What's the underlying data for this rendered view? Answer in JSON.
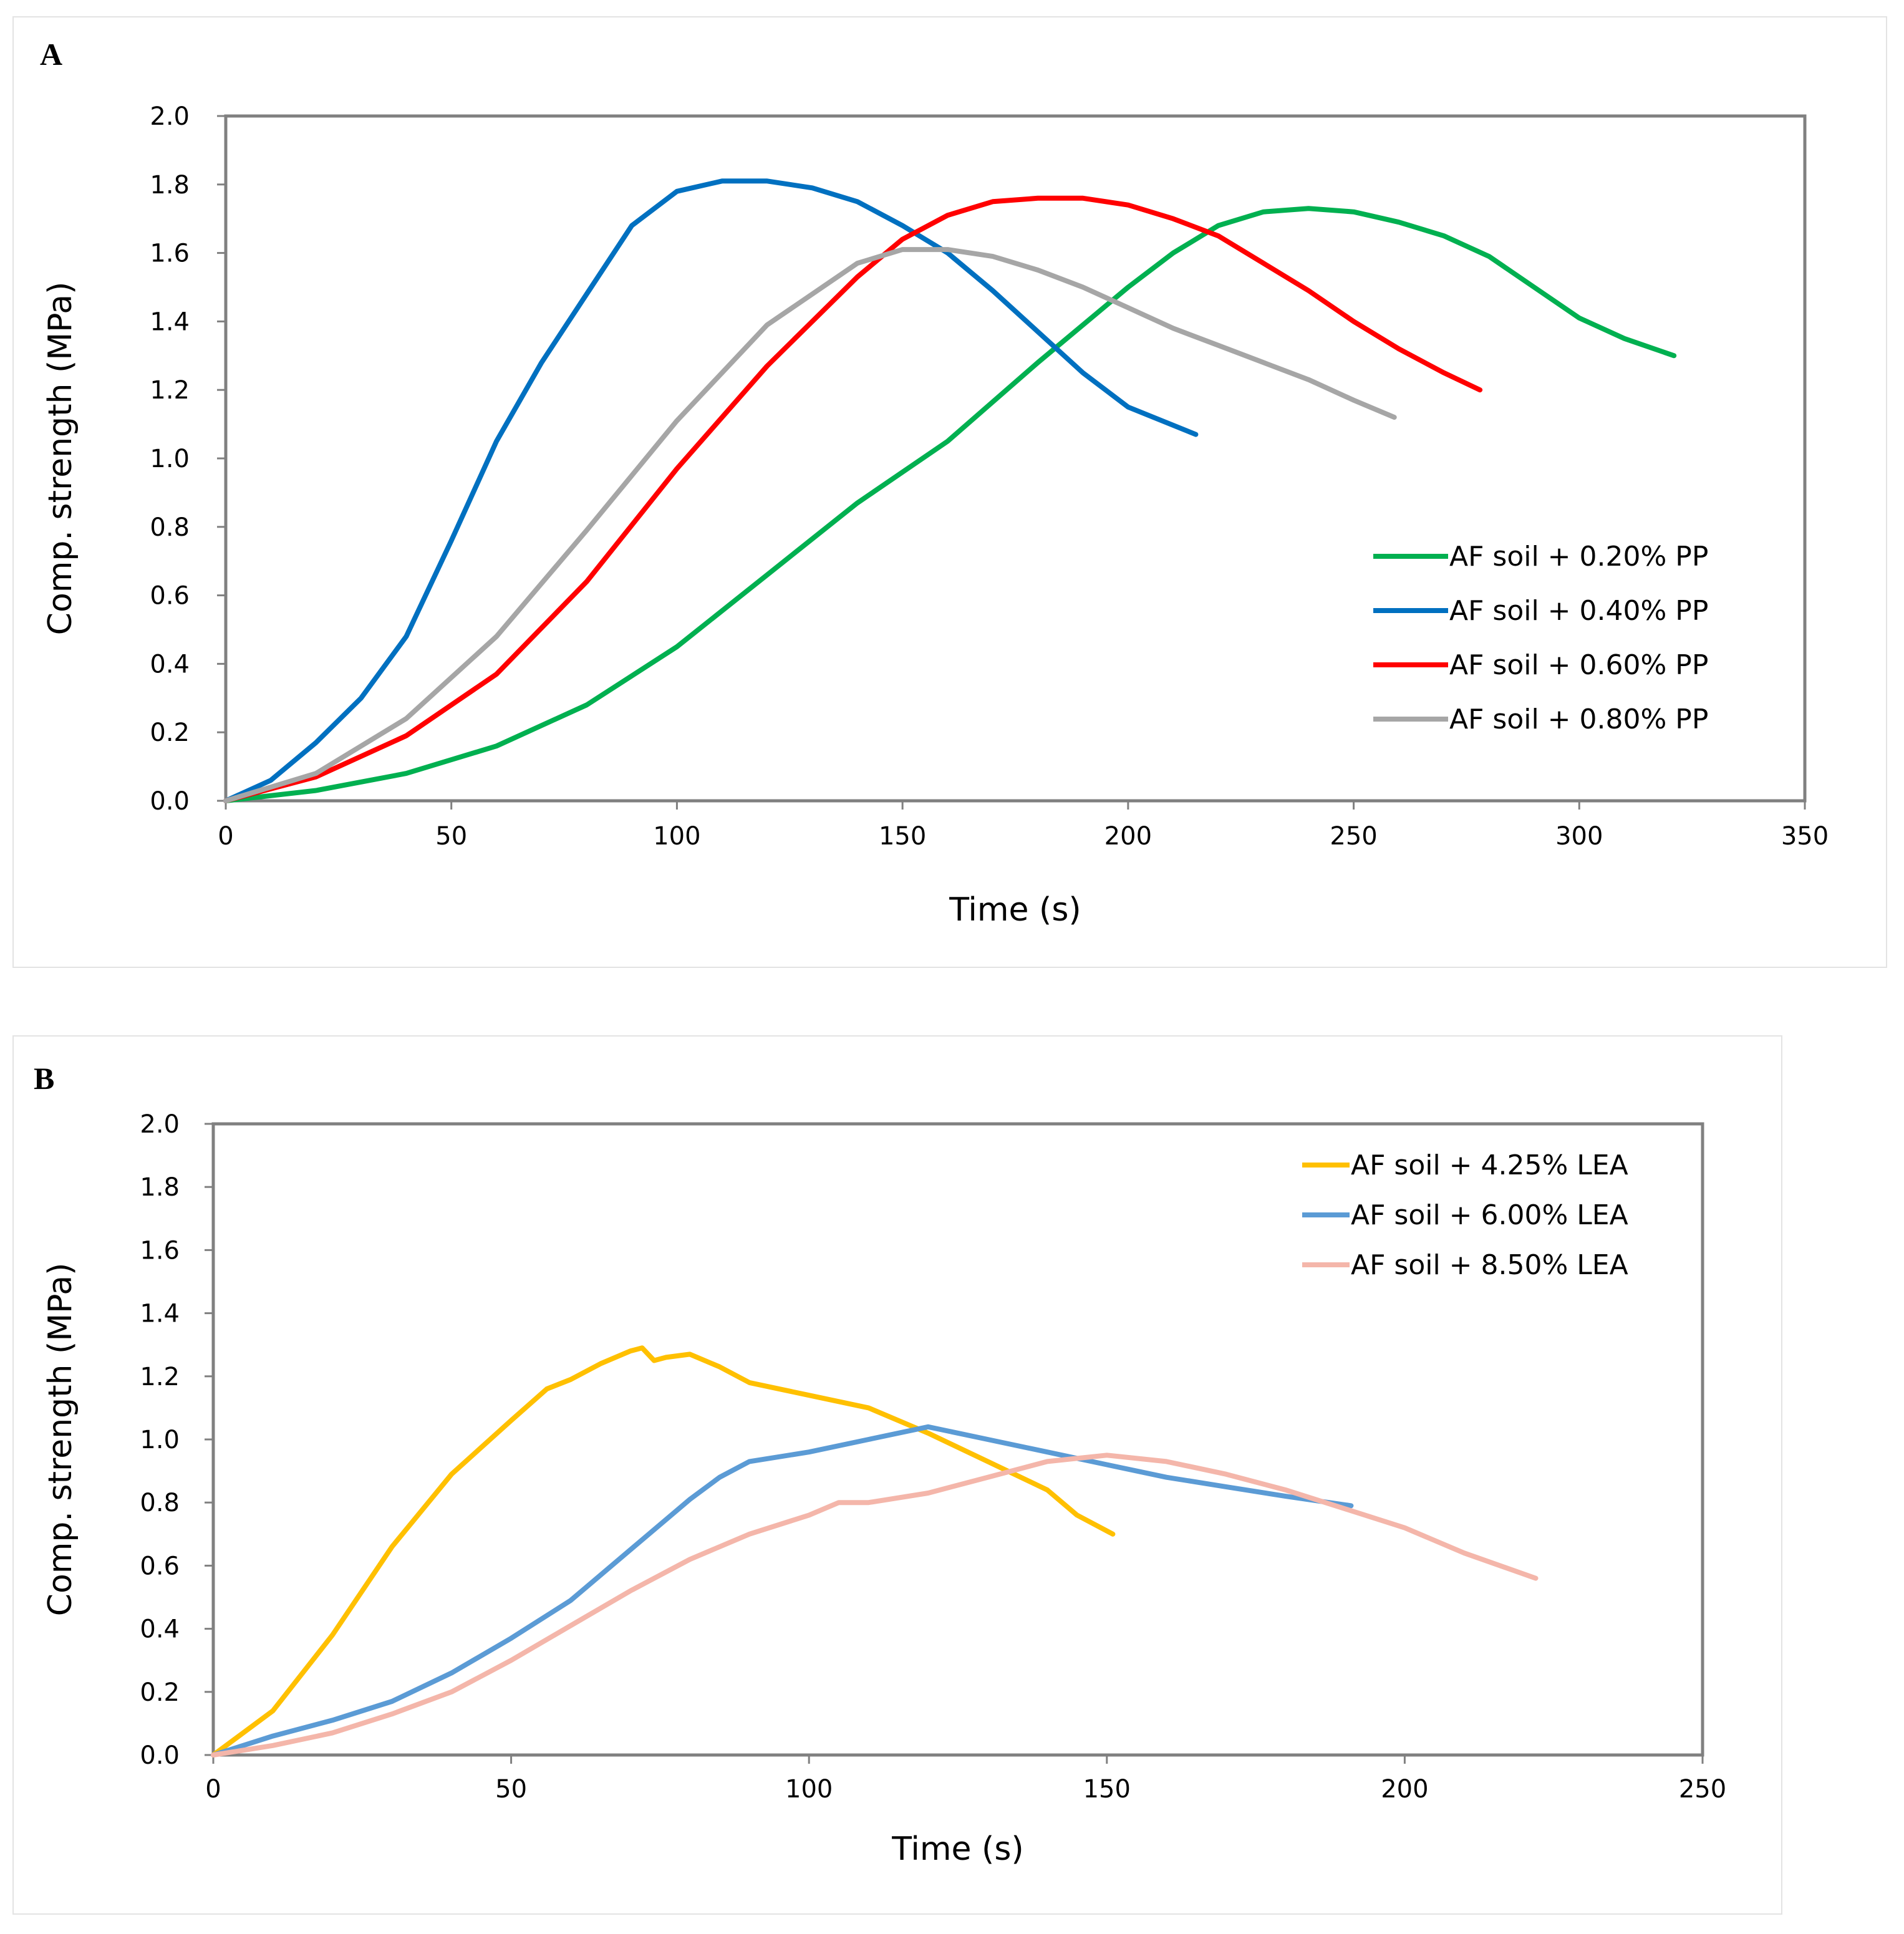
{
  "chart_data": [
    {
      "panel": "A",
      "type": "line",
      "xlabel": "Time (s)",
      "ylabel": "Comp. strength (MPa)",
      "xlim": [
        0,
        350
      ],
      "ylim": [
        0,
        2.0
      ],
      "xticks": [
        "0",
        "50",
        "100",
        "150",
        "200",
        "250",
        "300",
        "350"
      ],
      "yticks": [
        "0.0",
        "0.2",
        "0.4",
        "0.6",
        "0.8",
        "1.0",
        "1.2",
        "1.4",
        "1.6",
        "1.8",
        "2.0"
      ],
      "legend_position": "right",
      "series": [
        {
          "name": "AF soil + 0.20% PP",
          "color": "#00b050",
          "x": [
            0,
            20,
            40,
            60,
            80,
            100,
            120,
            140,
            160,
            180,
            200,
            210,
            220,
            230,
            240,
            250,
            260,
            270,
            280,
            290,
            300,
            310,
            321
          ],
          "y": [
            0,
            0.03,
            0.08,
            0.16,
            0.28,
            0.45,
            0.66,
            0.87,
            1.05,
            1.28,
            1.5,
            1.6,
            1.68,
            1.72,
            1.73,
            1.72,
            1.69,
            1.65,
            1.59,
            1.5,
            1.41,
            1.35,
            1.3
          ]
        },
        {
          "name": "AF soil + 0.40% PP",
          "color": "#0070c0",
          "x": [
            0,
            10,
            20,
            30,
            40,
            50,
            60,
            70,
            80,
            90,
            100,
            110,
            120,
            130,
            140,
            150,
            160,
            170,
            180,
            190,
            200,
            215
          ],
          "y": [
            0,
            0.06,
            0.17,
            0.3,
            0.48,
            0.76,
            1.05,
            1.28,
            1.48,
            1.68,
            1.78,
            1.81,
            1.81,
            1.79,
            1.75,
            1.68,
            1.6,
            1.49,
            1.37,
            1.25,
            1.15,
            1.07
          ]
        },
        {
          "name": "AF soil + 0.60% PP",
          "color": "#ff0000",
          "x": [
            0,
            20,
            40,
            60,
            80,
            100,
            120,
            140,
            150,
            160,
            170,
            180,
            190,
            200,
            210,
            220,
            230,
            240,
            250,
            260,
            270,
            278
          ],
          "y": [
            0,
            0.07,
            0.19,
            0.37,
            0.64,
            0.97,
            1.27,
            1.53,
            1.64,
            1.71,
            1.75,
            1.76,
            1.76,
            1.74,
            1.7,
            1.65,
            1.57,
            1.49,
            1.4,
            1.32,
            1.25,
            1.2
          ]
        },
        {
          "name": "AF soil + 0.80% PP",
          "color": "#a6a6a6",
          "x": [
            0,
            20,
            40,
            60,
            80,
            100,
            120,
            140,
            150,
            160,
            170,
            180,
            190,
            200,
            210,
            220,
            230,
            240,
            250,
            259
          ],
          "y": [
            0,
            0.08,
            0.24,
            0.48,
            0.79,
            1.11,
            1.39,
            1.57,
            1.61,
            1.61,
            1.59,
            1.55,
            1.5,
            1.44,
            1.38,
            1.33,
            1.28,
            1.23,
            1.17,
            1.12
          ]
        }
      ]
    },
    {
      "panel": "B",
      "type": "line",
      "xlabel": "Time (s)",
      "ylabel": "Comp. strength (MPa)",
      "xlim": [
        0,
        250
      ],
      "ylim": [
        0,
        2.0
      ],
      "xticks": [
        "0",
        "50",
        "100",
        "150",
        "200",
        "250"
      ],
      "yticks": [
        "0.0",
        "0.2",
        "0.4",
        "0.6",
        "0.8",
        "1.0",
        "1.2",
        "1.4",
        "1.6",
        "1.8",
        "2.0"
      ],
      "legend_position": "top-right",
      "series": [
        {
          "name": "AF soil + 4.25% LEA",
          "color": "#ffc000",
          "x": [
            0,
            10,
            20,
            30,
            40,
            50,
            56,
            60,
            65,
            70,
            72,
            74,
            76,
            80,
            85,
            90,
            100,
            110,
            120,
            130,
            140,
            145,
            151
          ],
          "y": [
            0,
            0.14,
            0.38,
            0.66,
            0.89,
            1.06,
            1.16,
            1.19,
            1.24,
            1.28,
            1.29,
            1.25,
            1.26,
            1.27,
            1.23,
            1.18,
            1.14,
            1.1,
            1.02,
            0.93,
            0.84,
            0.76,
            0.7
          ]
        },
        {
          "name": "AF soil + 6.00% LEA",
          "color": "#5b9bd5",
          "x": [
            0,
            10,
            20,
            30,
            40,
            50,
            60,
            70,
            80,
            85,
            90,
            100,
            110,
            120,
            130,
            140,
            150,
            160,
            170,
            180,
            191
          ],
          "y": [
            0,
            0.06,
            0.11,
            0.17,
            0.26,
            0.37,
            0.49,
            0.65,
            0.81,
            0.88,
            0.93,
            0.96,
            1.0,
            1.04,
            1.0,
            0.96,
            0.92,
            0.88,
            0.85,
            0.82,
            0.79
          ]
        },
        {
          "name": "AF soil + 8.50% LEA",
          "color": "#f4b6aa",
          "x": [
            0,
            10,
            20,
            30,
            40,
            50,
            60,
            70,
            80,
            90,
            100,
            105,
            110,
            120,
            130,
            140,
            150,
            160,
            170,
            180,
            190,
            200,
            210,
            222
          ],
          "y": [
            0,
            0.03,
            0.07,
            0.13,
            0.2,
            0.3,
            0.41,
            0.52,
            0.62,
            0.7,
            0.76,
            0.8,
            0.8,
            0.83,
            0.88,
            0.93,
            0.95,
            0.93,
            0.89,
            0.84,
            0.78,
            0.72,
            0.64,
            0.56
          ]
        }
      ]
    }
  ]
}
